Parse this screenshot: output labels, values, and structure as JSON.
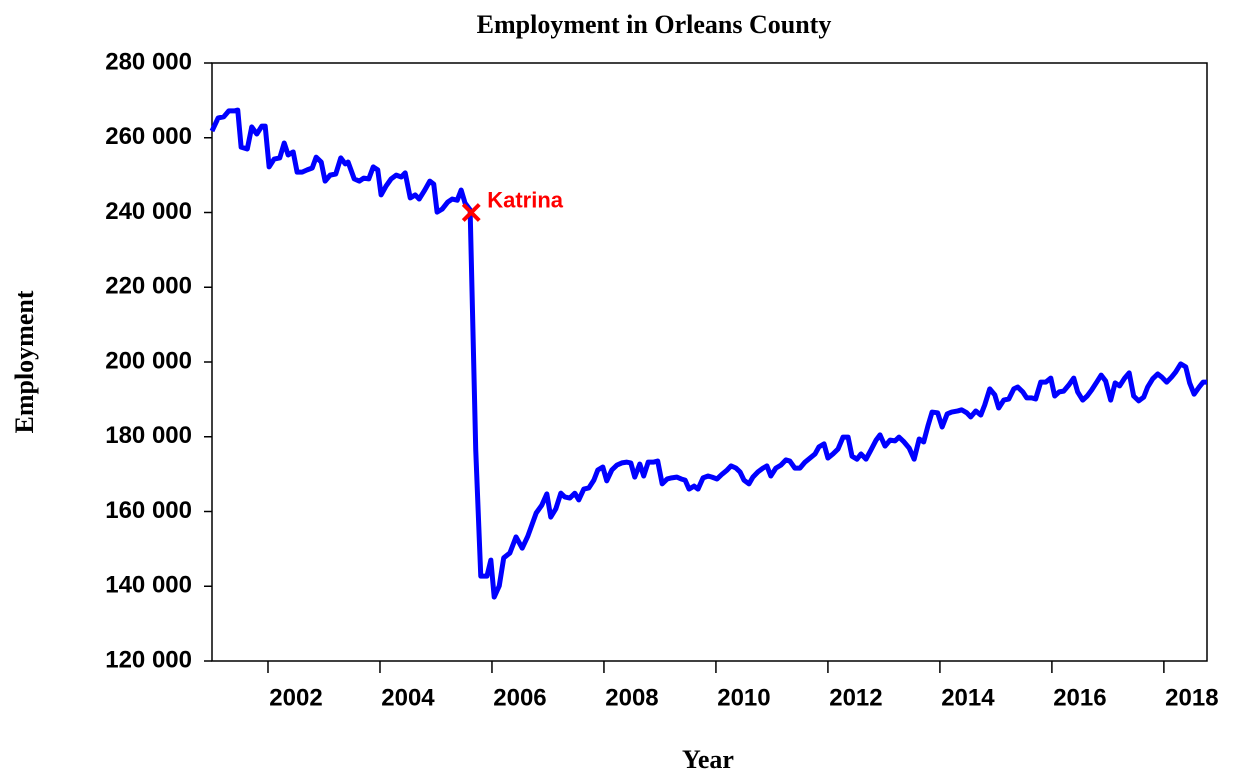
{
  "chart_data": {
    "type": "line",
    "title": "Employment in Orleans County",
    "x_label": "Year",
    "y_label": "Employment",
    "color": "#0000ff",
    "xlim": [
      2001,
      2018.77
    ],
    "xticks": [
      2002,
      2004,
      2006,
      2008,
      2010,
      2012,
      2014,
      2016,
      2018
    ],
    "ylim": [
      120000,
      280000
    ],
    "yticks": [
      {
        "value": 120000,
        "label": "120 000"
      },
      {
        "value": 140000,
        "label": "140 000"
      },
      {
        "value": 160000,
        "label": "160 000"
      },
      {
        "value": 180000,
        "label": "180 000"
      },
      {
        "value": 200000,
        "label": "200 000"
      },
      {
        "value": 220000,
        "label": "220 000"
      },
      {
        "value": 240000,
        "label": "240 000"
      },
      {
        "value": 260000,
        "label": "260 000"
      },
      {
        "value": 280000,
        "label": "280 000"
      }
    ],
    "grid": false,
    "annotations": [
      {
        "text": "Katrina",
        "x": 2005.63,
        "y": 240000,
        "color": "#ff0000"
      }
    ],
    "x": [
      2001.0,
      2001.11,
      2001.21,
      2001.3,
      2001.41,
      2001.46,
      2001.52,
      2001.63,
      2001.71,
      2001.8,
      2001.89,
      2001.95,
      2002.02,
      2002.11,
      2002.21,
      2002.29,
      2002.36,
      2002.45,
      2002.52,
      2002.61,
      2002.7,
      2002.79,
      2002.86,
      2002.95,
      2003.02,
      2003.11,
      2003.21,
      2003.3,
      2003.38,
      2003.43,
      2003.54,
      2003.63,
      2003.71,
      2003.8,
      2003.88,
      2003.96,
      2004.02,
      2004.11,
      2004.2,
      2004.29,
      2004.38,
      2004.45,
      2004.54,
      2004.63,
      2004.7,
      2004.8,
      2004.89,
      2004.96,
      2005.02,
      2005.11,
      2005.21,
      2005.29,
      2005.38,
      2005.45,
      2005.52,
      2005.61,
      2005.71,
      2005.8,
      2005.91,
      2005.98,
      2006.04,
      2006.13,
      2006.21,
      2006.32,
      2006.43,
      2006.54,
      2006.64,
      2006.79,
      2006.89,
      2006.98,
      2007.05,
      2007.14,
      2007.23,
      2007.3,
      2007.39,
      2007.48,
      2007.55,
      2007.64,
      2007.73,
      2007.82,
      2007.89,
      2007.98,
      2008.05,
      2008.14,
      2008.23,
      2008.32,
      2008.41,
      2008.48,
      2008.55,
      2008.64,
      2008.71,
      2008.79,
      2008.88,
      2008.96,
      2009.04,
      2009.13,
      2009.21,
      2009.3,
      2009.38,
      2009.45,
      2009.52,
      2009.61,
      2009.68,
      2009.77,
      2009.86,
      2009.93,
      2010.02,
      2010.11,
      2010.2,
      2010.27,
      2010.36,
      2010.43,
      2010.5,
      2010.59,
      2010.66,
      2010.75,
      2010.84,
      2010.91,
      2010.98,
      2011.07,
      2011.16,
      2011.25,
      2011.32,
      2011.41,
      2011.5,
      2011.59,
      2011.68,
      2011.77,
      2011.84,
      2011.93,
      2012.0,
      2012.09,
      2012.18,
      2012.27,
      2012.36,
      2012.43,
      2012.52,
      2012.59,
      2012.68,
      2012.77,
      2012.86,
      2012.93,
      2013.02,
      2013.11,
      2013.2,
      2013.27,
      2013.36,
      2013.45,
      2013.54,
      2013.63,
      2013.71,
      2013.79,
      2013.86,
      2013.96,
      2014.04,
      2014.13,
      2014.21,
      2014.32,
      2014.39,
      2014.48,
      2014.55,
      2014.64,
      2014.73,
      2014.8,
      2014.89,
      2014.98,
      2015.05,
      2015.14,
      2015.23,
      2015.32,
      2015.39,
      2015.48,
      2015.55,
      2015.64,
      2015.71,
      2015.8,
      2015.89,
      2015.98,
      2016.05,
      2016.13,
      2016.21,
      2016.3,
      2016.39,
      2016.46,
      2016.55,
      2016.63,
      2016.71,
      2016.8,
      2016.88,
      2016.96,
      2017.05,
      2017.13,
      2017.21,
      2017.3,
      2017.38,
      2017.46,
      2017.55,
      2017.64,
      2017.71,
      2017.8,
      2017.89,
      2017.96,
      2018.05,
      2018.14,
      2018.21,
      2018.3,
      2018.39,
      2018.46,
      2018.54,
      2018.63,
      2018.7,
      2018.77
    ],
    "values": [
      261800,
      265300,
      265600,
      267200,
      267200,
      267400,
      257500,
      257000,
      262900,
      261000,
      263100,
      263100,
      252200,
      254300,
      254600,
      258600,
      255400,
      256200,
      250800,
      250800,
      251400,
      251900,
      254800,
      253500,
      248400,
      250000,
      250300,
      254600,
      253000,
      253500,
      249000,
      248400,
      249200,
      249000,
      252200,
      251400,
      244700,
      247100,
      249000,
      250000,
      249500,
      250600,
      243900,
      244700,
      243600,
      246000,
      248400,
      247600,
      240100,
      240900,
      242800,
      243600,
      243300,
      246000,
      242500,
      240700,
      176500,
      142700,
      142700,
      147000,
      137100,
      140100,
      147600,
      148900,
      153200,
      150200,
      153400,
      159600,
      161700,
      164700,
      158500,
      160700,
      164900,
      163900,
      163600,
      164900,
      163100,
      166000,
      166300,
      168400,
      171100,
      171900,
      168200,
      171100,
      172400,
      173000,
      173200,
      173000,
      169200,
      172700,
      169500,
      173200,
      173200,
      173500,
      167400,
      168700,
      169000,
      169200,
      168700,
      168400,
      166000,
      166800,
      166000,
      169000,
      169500,
      169200,
      168700,
      170000,
      171100,
      172200,
      171600,
      170600,
      168400,
      167400,
      169200,
      170600,
      171600,
      172200,
      169500,
      171600,
      172400,
      173800,
      173500,
      171600,
      171600,
      173200,
      174300,
      175400,
      177300,
      178100,
      174300,
      175400,
      176700,
      179900,
      179900,
      174800,
      174000,
      175400,
      174000,
      176500,
      179100,
      180500,
      177500,
      179100,
      178900,
      179900,
      178600,
      177000,
      174000,
      179400,
      178600,
      183100,
      186600,
      186400,
      182600,
      186100,
      186600,
      186900,
      187200,
      186400,
      185300,
      186900,
      185800,
      188500,
      192800,
      191200,
      187700,
      189800,
      190100,
      192800,
      193300,
      192000,
      190400,
      190400,
      190100,
      194600,
      194600,
      195700,
      190900,
      192000,
      192200,
      193800,
      195700,
      192000,
      189800,
      190900,
      192500,
      194600,
      196500,
      194900,
      189800,
      194400,
      193600,
      195700,
      197100,
      190900,
      189600,
      190600,
      193300,
      195500,
      196800,
      196000,
      194600,
      196000,
      197300,
      199500,
      198700,
      194400,
      191400,
      193300,
      194600,
      194600
    ]
  }
}
